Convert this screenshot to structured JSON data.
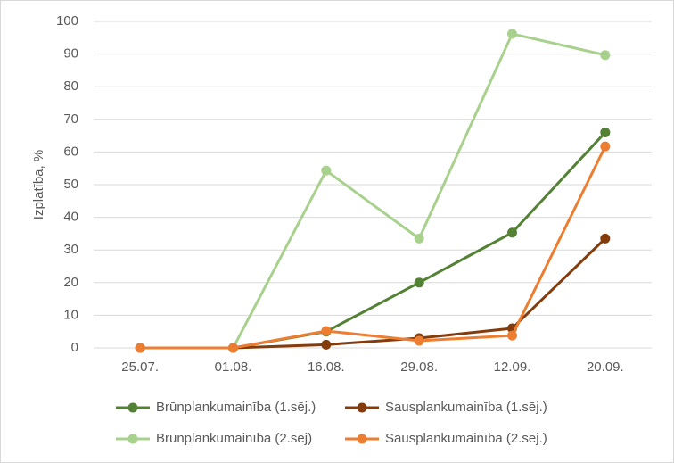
{
  "chart_data": {
    "type": "line",
    "y_label": "Izplatība, %",
    "categories": [
      "25.07.",
      "01.08.",
      "16.08.",
      "29.08.",
      "12.09.",
      "20.09."
    ],
    "series": [
      {
        "name": "Brūnplankumainība (1.sēj.)",
        "color": "#548235",
        "values": [
          0,
          0,
          5,
          20,
          35.3,
          66
        ]
      },
      {
        "name": "Sausplankumainība (1.sēj.)",
        "color": "#843c0c",
        "values": [
          0,
          0,
          1,
          3,
          6,
          33.5
        ]
      },
      {
        "name": "Brūnplankumainība (2.sēj)",
        "color": "#a9d18e",
        "values": [
          0,
          0,
          54.3,
          33.5,
          96.2,
          89.7
        ]
      },
      {
        "name": "Sausplankumainība (2.sēj.)",
        "color": "#ed7d31",
        "values": [
          0,
          0,
          5.2,
          2.2,
          3.8,
          61.7
        ]
      }
    ],
    "ylim": [
      0,
      100
    ],
    "yticks": [
      0,
      10,
      20,
      30,
      40,
      50,
      60,
      70,
      80,
      90,
      100
    ],
    "grid": true,
    "legend": "bottom"
  }
}
